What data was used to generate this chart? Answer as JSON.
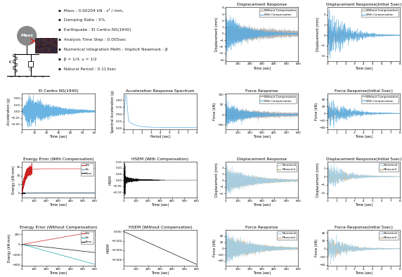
{
  "bg_color": "#ffffff",
  "info_text": [
    "Mass : 0.00204 kN · s² / mm,",
    "Damping Ratio : 5%",
    "Earthquake : El Centro NS(1940)",
    "Analysis Time Step : 0.005sec",
    "Numerical Integration Meth : Implicit Newmark - β",
    "β = 1/4, γ = 1/2",
    "Natural Period : 0.113sec"
  ],
  "subplot_titles": {
    "elcentro": "El Centro NS(1940)",
    "accel_spectrum": "Acceleration Response Spectrum",
    "disp_response": "Displacement Response",
    "disp_initial": "Displacement Response(Initial 5sec)",
    "force_response": "Force Response",
    "force_initial": "Force Response(Initial 5sec)",
    "energy_with": "Energy Error (With Compensation)",
    "hsem_with": "HSEM (With Compensation)",
    "energy_without": "Energy Error (Without Compensation)",
    "hsem_without": "HSEM (Without Compensation)",
    "disp_response2": "Displacement Response",
    "disp_initial2": "Displacement Response(Initial 5sec)",
    "force_response2": "Force Response",
    "force_initial2": "Force Response(Initial 5sec)"
  },
  "colors": {
    "blue": "#5aace0",
    "light_blue": "#a0cfe8",
    "gray": "#999999",
    "red": "#cc2222",
    "black": "#111111",
    "cyan": "#22aaaa",
    "tan": "#c8a87a",
    "dark_gray": "#555555"
  }
}
